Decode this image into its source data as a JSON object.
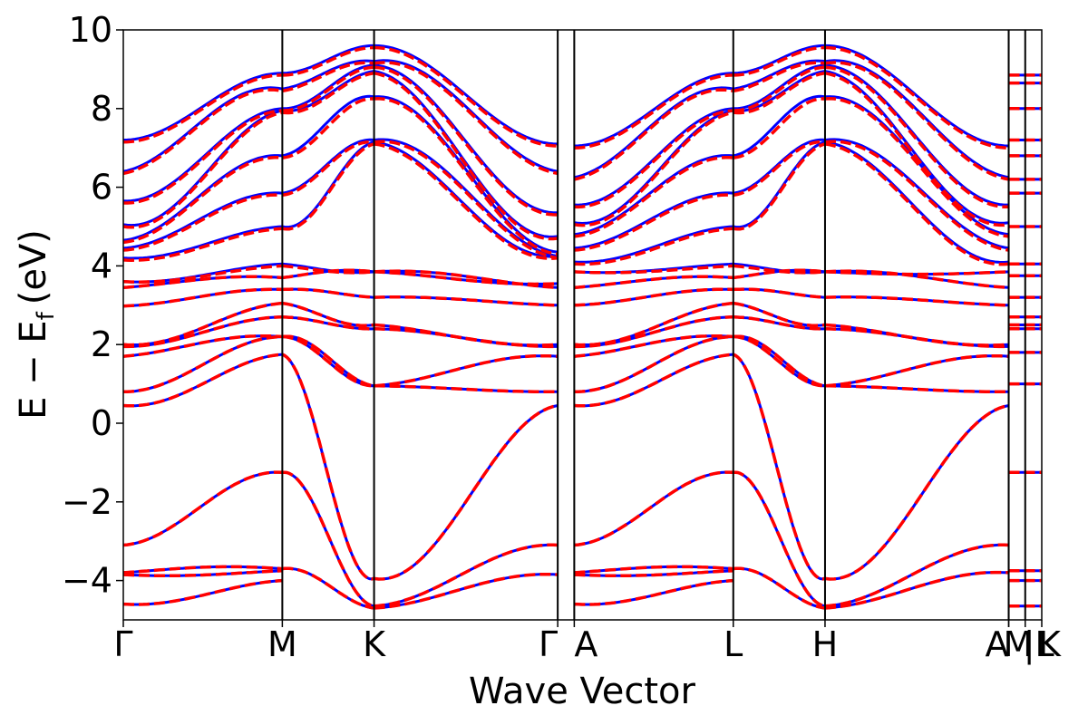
{
  "chart_data": {
    "type": "line",
    "xlabel": "Wave Vector",
    "ylabel": "E − E",
    "ylabel_sub": "f",
    "ylabel_unit": "(eV)",
    "ylim": [
      -5,
      10
    ],
    "yticks": [
      -4,
      -2,
      0,
      2,
      4,
      6,
      8,
      10
    ],
    "ytick_labels": [
      "−4",
      "−2",
      "0",
      "2",
      "4",
      "6",
      "8",
      "10"
    ],
    "kpath": [
      {
        "label": "Γ",
        "k": 0.0
      },
      {
        "label": "M",
        "k": 1.0
      },
      {
        "label": "K",
        "k": 1.577
      },
      {
        "label": "Γ",
        "k": 2.732
      },
      {
        "label": "A",
        "k": 2.836
      },
      {
        "label": "L",
        "k": 3.836
      },
      {
        "label": "H",
        "k": 4.413
      },
      {
        "label": "A",
        "k": 5.568
      },
      {
        "label": "M",
        "k": 5.568
      },
      {
        "label": "|L",
        "k": 5.672
      },
      {
        "label": "K",
        "k": 5.776
      }
    ],
    "k_range": [
      0,
      5.776
    ],
    "series": [
      {
        "style": "solid",
        "color": "#0000ff"
      },
      {
        "style": "dashed",
        "color": "#ff0000"
      }
    ],
    "bands_by_segment": {
      "G": [
        7.2,
        6.4,
        5.65,
        5.05,
        4.65,
        4.45,
        4.2,
        3.6,
        3.45,
        2.98,
        2.0,
        1.95,
        1.7,
        0.8,
        0.45,
        -3.1,
        -3.8,
        -3.85,
        -4.6
      ],
      "M": [
        8.9,
        8.5,
        8.0,
        7.95,
        6.8,
        5.85,
        5.0,
        4.05,
        3.7,
        3.4,
        3.05,
        2.7,
        2.2,
        2.2,
        1.75,
        -1.25,
        -3.7,
        -3.75,
        -4.0,
        -4.8
      ],
      "K": [
        9.6,
        9.2,
        9.1,
        8.95,
        8.3,
        7.2,
        7.15,
        3.85,
        3.85,
        3.2,
        2.5,
        2.4,
        0.95,
        0.95,
        -3.95,
        -4.65,
        -4.7
      ],
      "G2": [
        7.1,
        6.4,
        5.35,
        4.75,
        4.35,
        4.25,
        4.25,
        3.55,
        3.45,
        3.0,
        2.0,
        1.95,
        1.7,
        0.8,
        0.45,
        -3.1,
        -3.85,
        -3.85,
        -4.6
      ],
      "A": [
        7.05,
        6.25,
        5.55,
        5.1,
        4.8,
        4.45,
        4.1,
        3.85,
        3.45,
        3.0,
        2.0,
        1.95,
        1.7,
        0.8,
        0.45,
        -3.1,
        -3.8,
        -3.85,
        -4.6
      ]
    },
    "flat_bands_after_A": [
      8.85,
      8.65,
      8.0,
      7.2,
      6.8,
      6.2,
      5.85,
      5.0,
      4.05,
      3.75,
      3.2,
      2.7,
      2.5,
      2.4,
      1.8,
      1.0,
      -1.25,
      -3.75,
      -4.0,
      -4.65
    ]
  }
}
